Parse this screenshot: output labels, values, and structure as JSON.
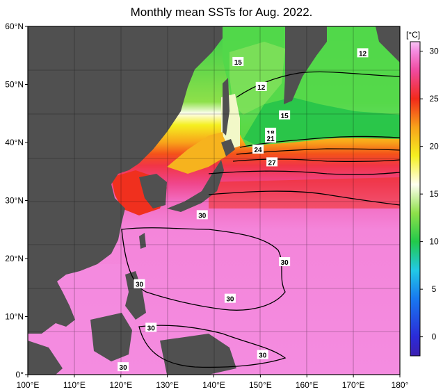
{
  "title": "Monthly mean SSTs for Aug. 2022.",
  "colorbar": {
    "unit": "[°C]",
    "ticks": [
      "30",
      "25",
      "20",
      "15",
      "10",
      "5",
      "0"
    ],
    "tick_values": [
      30,
      25,
      20,
      15,
      10,
      5,
      0
    ],
    "range": [
      -2,
      31
    ],
    "stops": [
      {
        "v": -2,
        "c": "#3b1fb0"
      },
      {
        "v": 0,
        "c": "#2b2bd8"
      },
      {
        "v": 4,
        "c": "#1878f0"
      },
      {
        "v": 7,
        "c": "#22c9e6"
      },
      {
        "v": 10,
        "c": "#22c94a"
      },
      {
        "v": 13,
        "c": "#8ee04a"
      },
      {
        "v": 16,
        "c": "#fffff0"
      },
      {
        "v": 19,
        "c": "#f5f020"
      },
      {
        "v": 22,
        "c": "#f8a31a"
      },
      {
        "v": 25,
        "c": "#f22a1a"
      },
      {
        "v": 28,
        "c": "#f04aa0"
      },
      {
        "v": 30,
        "c": "#f48ce0"
      },
      {
        "v": 31,
        "c": "#f9c4f4"
      }
    ]
  },
  "axes": {
    "lat_labels": [
      "60°N",
      "50°N",
      "40°N",
      "30°N",
      "20°N",
      "10°N",
      "0°"
    ],
    "lat_values": [
      60,
      50,
      40,
      30,
      20,
      10,
      0
    ],
    "lon_labels": [
      "100°E",
      "110°E",
      "120°E",
      "130°E",
      "140°E",
      "150°E",
      "160°E",
      "170°E",
      "180°"
    ],
    "lon_values": [
      100,
      110,
      120,
      130,
      140,
      150,
      160,
      170,
      180
    ],
    "lon_range": [
      100,
      180
    ],
    "lat_range": [
      0,
      60
    ]
  },
  "contour_labels": [
    {
      "text": "15",
      "lon": 145.2,
      "lat": 53.9
    },
    {
      "text": "12",
      "lon": 172,
      "lat": 55.4
    },
    {
      "text": "12",
      "lon": 150.2,
      "lat": 49.6
    },
    {
      "text": "15",
      "lon": 155.2,
      "lat": 44.7
    },
    {
      "text": "18",
      "lon": 152.2,
      "lat": 41.7
    },
    {
      "text": "21",
      "lon": 152.2,
      "lat": 40.7
    },
    {
      "text": "24",
      "lon": 149.5,
      "lat": 38.8
    },
    {
      "text": "27",
      "lon": 152.5,
      "lat": 36.6
    },
    {
      "text": "30",
      "lon": 137.5,
      "lat": 27.5
    },
    {
      "text": "30",
      "lon": 155.2,
      "lat": 19.4
    },
    {
      "text": "30",
      "lon": 124,
      "lat": 15.6
    },
    {
      "text": "30",
      "lon": 143.5,
      "lat": 13.1
    },
    {
      "text": "30",
      "lon": 126.5,
      "lat": 8.1
    },
    {
      "text": "30",
      "lon": 150.5,
      "lat": 3.4
    },
    {
      "text": "30",
      "lon": 120.5,
      "lat": 1.3
    }
  ],
  "land_color": "#505050",
  "ocean_sst": [
    {
      "lat": 58,
      "temp": 11
    },
    {
      "lat": 52,
      "temp": 12
    },
    {
      "lat": 47,
      "temp": 13
    },
    {
      "lat": 45,
      "temp": 16
    },
    {
      "lat": 43,
      "temp": 19
    },
    {
      "lat": 40,
      "temp": 22
    },
    {
      "lat": 38,
      "temp": 24
    },
    {
      "lat": 36,
      "temp": 26
    },
    {
      "lat": 33,
      "temp": 27.5
    },
    {
      "lat": 30,
      "temp": 29
    },
    {
      "lat": 25,
      "temp": 29.8
    },
    {
      "lat": 0,
      "temp": 30
    }
  ]
}
